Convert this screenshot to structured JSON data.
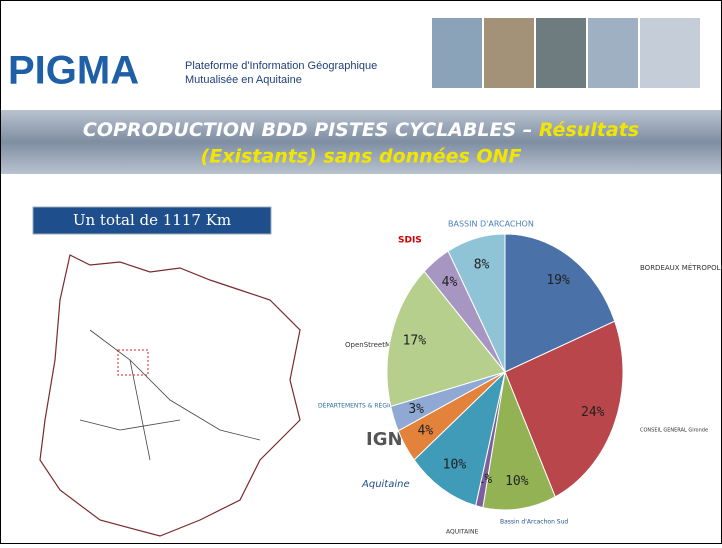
{
  "header": {
    "brand": "PIGMA",
    "tagline_1": "Plateforme d'Information Géographique",
    "tagline_2": "Mutualisée en Aquitaine",
    "title_1": "COPRODUCTION BDD PISTES CYCLABLES – ",
    "title_2": "Résultats",
    "title_3": "(Existants) sans données ONF"
  },
  "total": "Un total de 1117 Km",
  "logos": [
    "BASSIN D'ARCACHON",
    "BORDEAUX MÉTROPOLE",
    "SDIS",
    "OpenStreetMap",
    "DÉPARTEMENTS & RÉGIONS CYCLABLES",
    "IGN",
    "CONSEIL GENERAL Gironde",
    "Aquitaine",
    "AQUITAINE",
    "Bassin d'Arcachon Sud"
  ],
  "chart_data": {
    "type": "pie",
    "values": [
      19,
      24,
      10,
      1,
      10,
      4,
      3,
      17,
      4,
      8
    ],
    "value_labels": [
      "19%",
      "24%",
      "10%",
      "1%",
      "10%",
      "4%",
      "3%",
      "17%",
      "4%",
      "8%"
    ],
    "colors": [
      "#4a71a8",
      "#b8464a",
      "#93b254",
      "#7c5f9c",
      "#3f9bb8",
      "#e3823a",
      "#8fa9d4",
      "#b6cf8c",
      "#a896c2",
      "#8fc3d6"
    ]
  }
}
